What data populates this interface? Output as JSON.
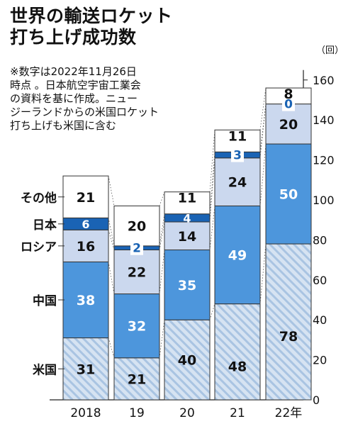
{
  "title": [
    "世界の輸送ロケット",
    "打ち上げ成功数"
  ],
  "note": [
    "※数字は2022年11月26日",
    "時点 。日本航空宇宙工業会",
    "の資料を基に作成。ニュー",
    "ジーランドからの米国ロケット",
    "打ち上げも米国に含む"
  ],
  "chart_data": {
    "type": "bar",
    "stacked": true,
    "categories": [
      "2018",
      "19",
      "20",
      "21",
      "22年"
    ],
    "series": [
      {
        "name": "米国",
        "values": [
          31,
          21,
          40,
          48,
          78
        ]
      },
      {
        "name": "中国",
        "values": [
          38,
          32,
          35,
          49,
          50
        ]
      },
      {
        "name": "ロシア",
        "values": [
          16,
          22,
          14,
          24,
          20
        ]
      },
      {
        "name": "日本",
        "values": [
          6,
          2,
          4,
          3,
          0
        ]
      },
      {
        "name": "その他",
        "values": [
          21,
          20,
          11,
          11,
          8
        ]
      }
    ],
    "y_unit": "（回）",
    "yticks": [
      0,
      20,
      40,
      60,
      80,
      100,
      120,
      140,
      160
    ],
    "ylim": [
      0,
      160
    ],
    "legend": "left-labels",
    "colors": {
      "us": "#d6e3f2",
      "us_stripe": "#a9c4e2",
      "china": "#4d96dc",
      "russia": "#cbd8ee",
      "japan": "#1a63b4",
      "other": "#ffffff"
    }
  }
}
